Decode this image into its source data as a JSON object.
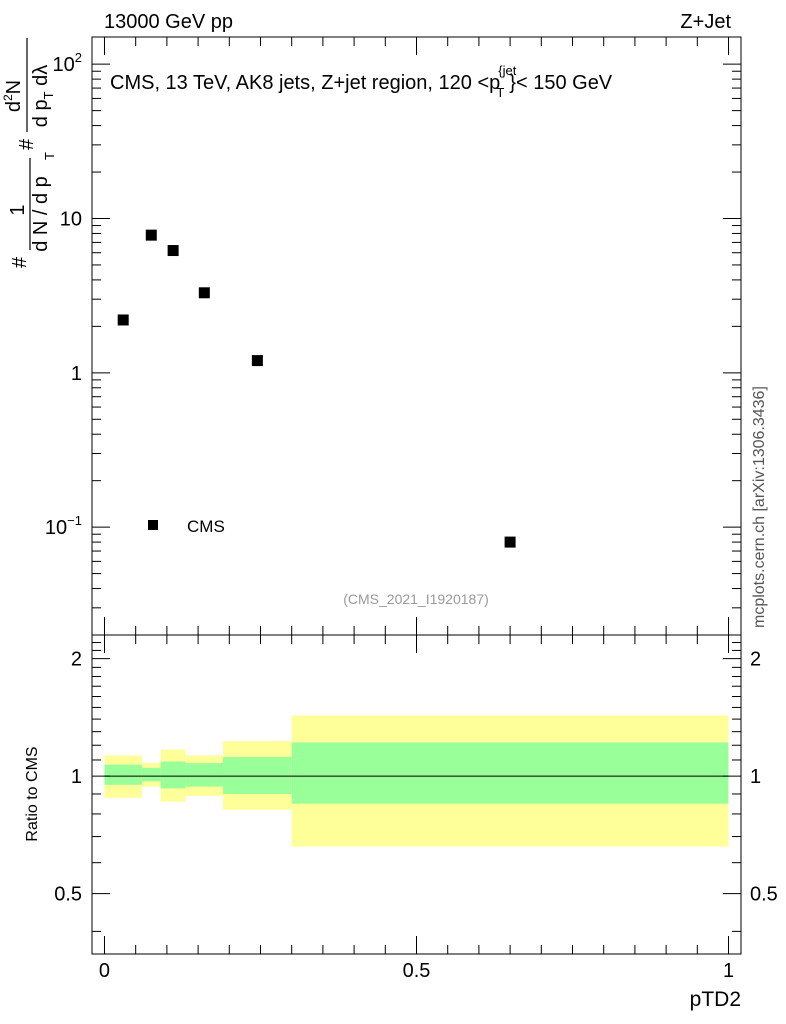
{
  "header": {
    "left": "13000 GeV pp",
    "right": "Z+Jet"
  },
  "side_label": "mcplots.cern.ch [arXiv:1306.3436]",
  "chart_data": [
    {
      "type": "scatter",
      "panel": "main",
      "title": "CMS, 13 TeV, AK8 jets, Z+jet region, 120 <p_T^{jet}< 150 GeV",
      "title_parts": {
        "main": "CMS, 13 TeV, AK8 jets, Z+jet region, 120 <p",
        "sup": "{jet",
        "sub": "T",
        "close": "}",
        "tail": "< 150 GeV"
      },
      "watermark": "(CMS_2021_I1920187)",
      "ylabel": "1/(dN/dp_T) d²N/(dp_T dλ)",
      "ylabel_parts": {
        "num_sharp": "#",
        "num": "1",
        "den": "d N / d p",
        "den_sub": "T",
        "frac_sharp": "#",
        "frac_num": "d",
        "frac_num_sup": "2",
        "frac_num_n": "N",
        "frac_den": "d p",
        "frac_den_sub": "T",
        "frac_den_tail": " d",
        "lambda": "λ"
      },
      "yscale": "log",
      "ylim": [
        0.02,
        150
      ],
      "xlim": [
        -0.02,
        1.02
      ],
      "ytick_labels": [
        {
          "base": "10",
          "exp": "2",
          "value": 100
        },
        {
          "base": "10",
          "exp": "",
          "value": 10
        },
        {
          "base": "1",
          "exp": "",
          "value": 1
        },
        {
          "base": "10",
          "exp": "−1",
          "value": 0.1
        }
      ],
      "legend": [
        {
          "label": "CMS",
          "position": "lower-left"
        }
      ],
      "series": [
        {
          "name": "CMS",
          "x": [
            0.03,
            0.075,
            0.11,
            0.16,
            0.245,
            0.65
          ],
          "y": [
            2.2,
            7.8,
            6.2,
            3.3,
            1.2,
            0.08
          ]
        }
      ]
    },
    {
      "type": "area",
      "panel": "ratio",
      "ylabel": "Ratio to CMS",
      "xlabel": "pTD2",
      "xlim": [
        -0.02,
        1.02
      ],
      "ylim": [
        0.35,
        2.3
      ],
      "xtick_labels": [
        {
          "label": "0",
          "value": 0
        },
        {
          "label": "0.5",
          "value": 0.5
        },
        {
          "label": "1",
          "value": 1
        }
      ],
      "ytick_labels": [
        {
          "label": "2",
          "value": 2
        },
        {
          "label": "1",
          "value": 1
        },
        {
          "label": "0.5",
          "value": 0.5
        }
      ],
      "reference_line": 1,
      "bins": [
        {
          "x0": 0.0,
          "x1": 0.06,
          "stat_lo": 0.95,
          "stat_hi": 1.07,
          "tot_lo": 0.88,
          "tot_hi": 1.13
        },
        {
          "x0": 0.06,
          "x1": 0.09,
          "stat_lo": 0.97,
          "stat_hi": 1.05,
          "tot_lo": 0.94,
          "tot_hi": 1.08
        },
        {
          "x0": 0.09,
          "x1": 0.13,
          "stat_lo": 0.93,
          "stat_hi": 1.09,
          "tot_lo": 0.86,
          "tot_hi": 1.17
        },
        {
          "x0": 0.13,
          "x1": 0.19,
          "stat_lo": 0.94,
          "stat_hi": 1.08,
          "tot_lo": 0.89,
          "tot_hi": 1.13
        },
        {
          "x0": 0.19,
          "x1": 0.3,
          "stat_lo": 0.9,
          "stat_hi": 1.12,
          "tot_lo": 0.82,
          "tot_hi": 1.23
        },
        {
          "x0": 0.3,
          "x1": 1.0,
          "stat_lo": 0.85,
          "stat_hi": 1.22,
          "tot_lo": 0.66,
          "tot_hi": 1.43
        }
      ],
      "colors": {
        "stat_band": "#99ff99",
        "total_band": "#ffff99",
        "line": "#000000"
      }
    }
  ]
}
